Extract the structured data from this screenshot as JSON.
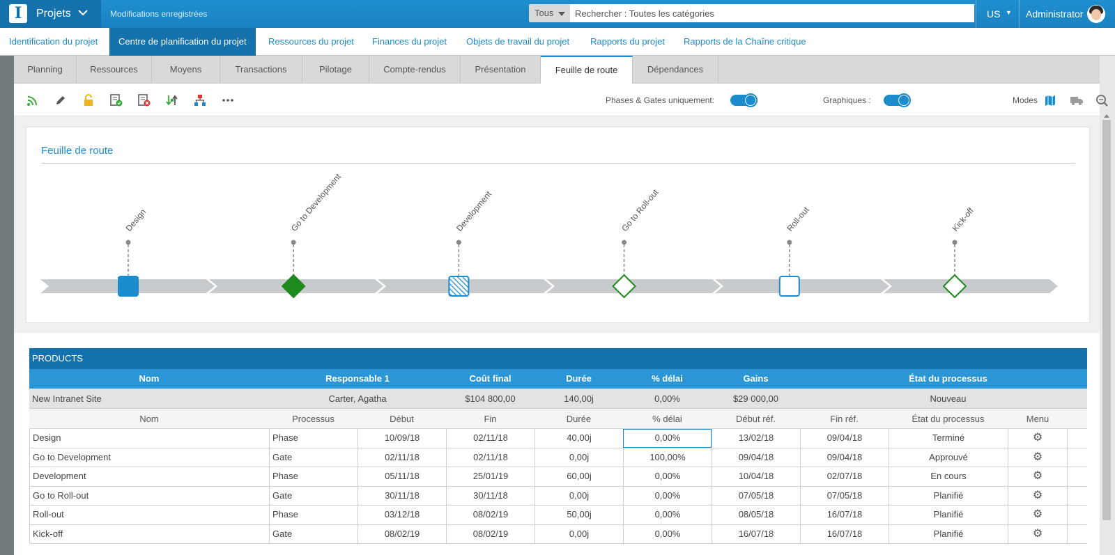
{
  "topbar": {
    "logo_letter": "I",
    "app_name": "Projets",
    "saved_status": "Modifications enregistrées",
    "search_scope": "Tous",
    "search_placeholder": "Rechercher : Toutes les catégories",
    "language": "US",
    "user": "Administrator"
  },
  "main_nav": [
    {
      "label": "Identification du projet",
      "active": false
    },
    {
      "label": "Centre de planification du projet",
      "active": true
    },
    {
      "label": "Ressources du projet",
      "active": false
    },
    {
      "label": "Finances du projet",
      "active": false
    },
    {
      "label": "Objets de travail du projet",
      "active": false
    },
    {
      "label": "Rapports du projet",
      "active": false
    },
    {
      "label": "Rapports de la Chaîne critique",
      "active": false
    }
  ],
  "sub_tabs": [
    {
      "label": "Planning",
      "active": false
    },
    {
      "label": "Ressources",
      "active": false
    },
    {
      "label": "Moyens",
      "active": false
    },
    {
      "label": "Transactions",
      "active": false
    },
    {
      "label": "Pilotage",
      "active": false
    },
    {
      "label": "Compte-rendus",
      "active": false
    },
    {
      "label": "Présentation",
      "active": false
    },
    {
      "label": "Feuille de route",
      "active": true
    },
    {
      "label": "Dépendances",
      "active": false
    }
  ],
  "toolbar": {
    "icons": [
      "rss-icon",
      "edit-pencil-icon",
      "lock-icon",
      "approve-list-icon",
      "reject-list-icon",
      "swap-icon",
      "hierarchy-icon",
      "more-icon"
    ],
    "phases_gates_label": "Phases & Gates uniquement:",
    "phases_gates_on": true,
    "graphics_label": "Graphiques :",
    "graphics_on": true,
    "modes_label": "Modes",
    "mode_icons": [
      "map-icon",
      "truck-icon",
      "zoom-icon"
    ]
  },
  "roadmap": {
    "title": "Feuille de route",
    "milestones": [
      {
        "label": "Design",
        "shape": "square-filled",
        "color": "#1a8ccc"
      },
      {
        "label": "Go to Development",
        "shape": "diamond-filled",
        "color": "#1e8a1e"
      },
      {
        "label": "Development",
        "shape": "square-hatched",
        "color": "#1a8ccc"
      },
      {
        "label": "Go to Roll-out",
        "shape": "diamond-outline",
        "color": "#1e8a1e"
      },
      {
        "label": "Roll-out",
        "shape": "square-outline",
        "color": "#1a8ccc"
      },
      {
        "label": "Kick-off",
        "shape": "diamond-outline",
        "color": "#1e8a1e"
      }
    ]
  },
  "products": {
    "title": "PRODUCTS",
    "summary_headers": [
      "Nom",
      "Responsable 1",
      "Coût final",
      "Durée",
      "% délai",
      "Gains",
      "État du processus"
    ],
    "summary_row": {
      "nom": "New Intranet Site",
      "responsable": "Carter, Agatha",
      "cout": "$104 800,00",
      "duree": "140,00j",
      "delai": "0,00%",
      "gains": "$29 000,00",
      "etat": "Nouveau"
    },
    "detail_headers": [
      "Nom",
      "Processus",
      "Début",
      "Fin",
      "Durée",
      "% délai",
      "Début réf.",
      "Fin réf.",
      "État du processus",
      "Menu"
    ],
    "rows": [
      {
        "nom": "Design",
        "processus": "Phase",
        "debut": "10/09/18",
        "fin": "02/11/18",
        "duree": "40,00j",
        "delai": "0,00%",
        "debut_ref": "13/02/18",
        "fin_ref": "09/04/18",
        "etat": "Terminé"
      },
      {
        "nom": "Go to Development",
        "processus": "Gate",
        "debut": "02/11/18",
        "fin": "02/11/18",
        "duree": "0,00j",
        "delai": "100,00%",
        "debut_ref": "09/04/18",
        "fin_ref": "09/04/18",
        "etat": "Approuvé"
      },
      {
        "nom": "Development",
        "processus": "Phase",
        "debut": "05/11/18",
        "fin": "25/01/19",
        "duree": "60,00j",
        "delai": "0,00%",
        "debut_ref": "10/04/18",
        "fin_ref": "02/07/18",
        "etat": "En cours"
      },
      {
        "nom": "Go to Roll-out",
        "processus": "Gate",
        "debut": "30/11/18",
        "fin": "30/11/18",
        "duree": "0,00j",
        "delai": "0,00%",
        "debut_ref": "07/05/18",
        "fin_ref": "07/05/18",
        "etat": "Planifié"
      },
      {
        "nom": "Roll-out",
        "processus": "Phase",
        "debut": "03/12/18",
        "fin": "08/02/19",
        "duree": "50,00j",
        "delai": "0,00%",
        "debut_ref": "08/05/18",
        "fin_ref": "16/07/18",
        "etat": "Planifié"
      },
      {
        "nom": "Kick-off",
        "processus": "Gate",
        "debut": "08/02/19",
        "fin": "08/02/19",
        "duree": "0,00j",
        "delai": "0,00%",
        "debut_ref": "16/07/18",
        "fin_ref": "16/07/18",
        "etat": "Planifié"
      }
    ]
  },
  "colors": {
    "brand_dark": "#1471ac",
    "brand": "#1a8ccc",
    "gate_green": "#1e8a1e"
  }
}
